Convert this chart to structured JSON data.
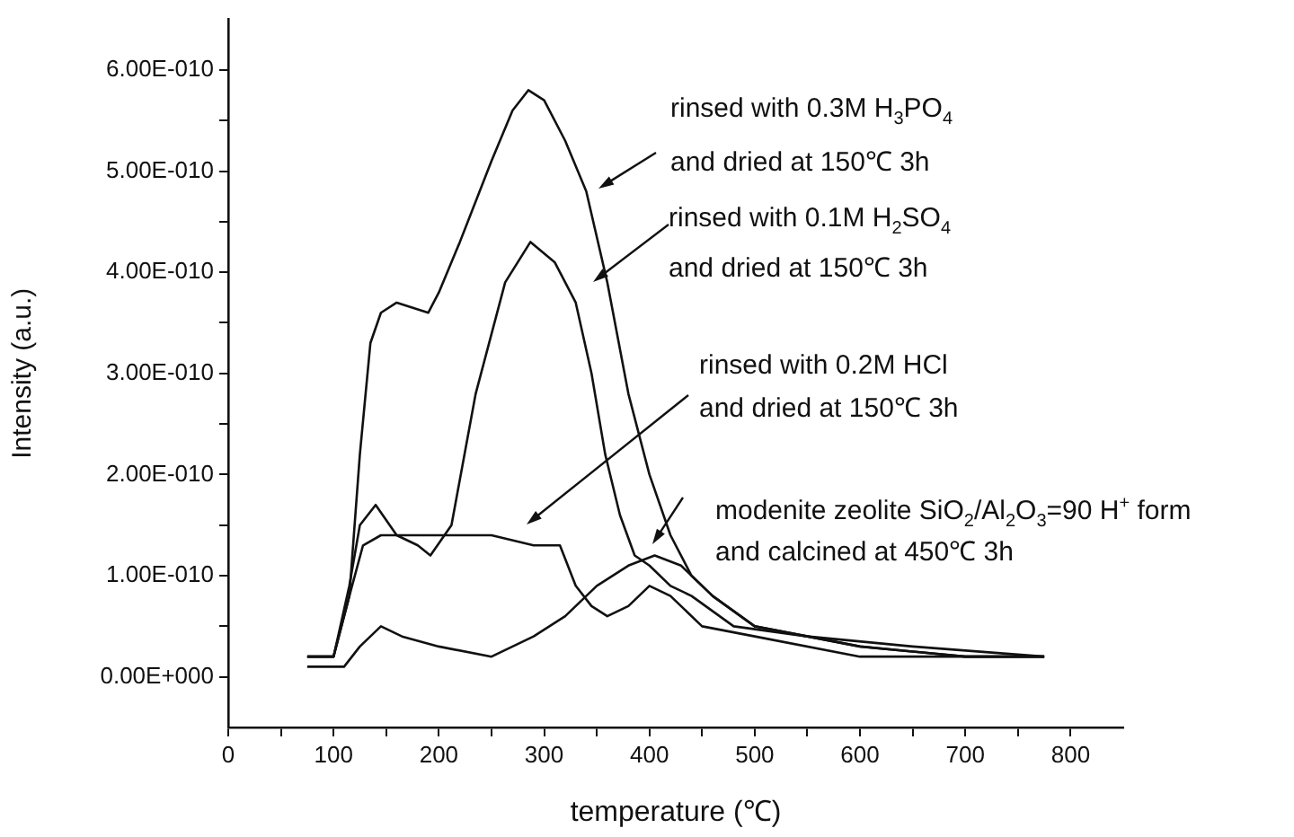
{
  "chart_data": {
    "type": "line",
    "xlabel": "temperature (℃)",
    "ylabel": "Intensity (a.u.)",
    "xlim": [
      0,
      850
    ],
    "xticks": [
      0,
      {
        "value": 50,
        "label": null
      },
      100,
      {
        "value": 150,
        "label": null
      },
      200,
      {
        "value": 250,
        "label": null
      },
      300,
      {
        "value": 350,
        "label": null
      },
      400,
      {
        "value": 450,
        "label": null
      },
      500,
      {
        "value": 550,
        "label": null
      },
      600,
      {
        "value": 650,
        "label": null
      },
      700,
      {
        "value": 750,
        "label": null
      },
      800
    ],
    "ylim": [
      -5e-11,
      6.5e-10
    ],
    "yticks": [
      {
        "value": 0,
        "label": "0.00E+000"
      },
      {
        "value": 5e-11,
        "label": null
      },
      {
        "value": 1e-10,
        "label": "1.00E-010"
      },
      {
        "value": 1.5e-10,
        "label": null
      },
      {
        "value": 2e-10,
        "label": "2.00E-010"
      },
      {
        "value": 2.5e-10,
        "label": null
      },
      {
        "value": 3e-10,
        "label": "3.00E-010"
      },
      {
        "value": 3.5e-10,
        "label": null
      },
      {
        "value": 4e-10,
        "label": "4.00E-010"
      },
      {
        "value": 4.5e-10,
        "label": null
      },
      {
        "value": 5e-10,
        "label": "5.00E-010"
      },
      {
        "value": 5.5e-10,
        "label": null
      },
      {
        "value": 6e-10,
        "label": "6.00E-010"
      }
    ],
    "grid": false,
    "legend": false,
    "series": [
      {
        "color": "#111111",
        "x": [
          75,
          100,
          115,
          125,
          135,
          145,
          160,
          190,
          200,
          220,
          250,
          270,
          285,
          300,
          320,
          340,
          360,
          380,
          400,
          420,
          440,
          460,
          500,
          600,
          700,
          775
        ],
        "values": [
          2e-11,
          2e-11,
          8e-11,
          2.2e-10,
          3.3e-10,
          3.6e-10,
          3.7e-10,
          3.6e-10,
          3.8e-10,
          4.3e-10,
          5.1e-10,
          5.6e-10,
          5.8e-10,
          5.7e-10,
          5.3e-10,
          4.8e-10,
          3.9e-10,
          2.8e-10,
          2e-10,
          1.4e-10,
          1e-10,
          8e-11,
          5e-11,
          3e-11,
          2e-11,
          2e-11
        ]
      },
      {
        "color": "#111111",
        "x": [
          75,
          100,
          115,
          125,
          140,
          160,
          180,
          192,
          212,
          235,
          263,
          287,
          310,
          330,
          345,
          358,
          372,
          386,
          400,
          420,
          440,
          480,
          550,
          650,
          775
        ],
        "values": [
          2e-11,
          2e-11,
          9e-11,
          1.5e-10,
          1.7e-10,
          1.4e-10,
          1.3e-10,
          1.2e-10,
          1.5e-10,
          2.8e-10,
          3.9e-10,
          4.3e-10,
          4.1e-10,
          3.7e-10,
          3e-10,
          2.2e-10,
          1.6e-10,
          1.2e-10,
          1.1e-10,
          9e-11,
          8e-11,
          5e-11,
          4e-11,
          3e-11,
          2e-11
        ]
      },
      {
        "color": "#111111",
        "x": [
          75,
          100,
          115,
          128,
          145,
          170,
          200,
          250,
          290,
          315,
          330,
          345,
          360,
          380,
          400,
          420,
          450,
          500,
          600,
          700,
          775
        ],
        "values": [
          2e-11,
          2e-11,
          8e-11,
          1.3e-10,
          1.4e-10,
          1.4e-10,
          1.4e-10,
          1.4e-10,
          1.3e-10,
          1.3e-10,
          9e-11,
          7e-11,
          6e-11,
          7e-11,
          9e-11,
          8e-11,
          5e-11,
          4e-11,
          2e-11,
          2e-11,
          2e-11
        ]
      },
      {
        "color": "#111111",
        "x": [
          75,
          110,
          125,
          145,
          165,
          200,
          250,
          290,
          320,
          350,
          380,
          405,
          430,
          460,
          500,
          600,
          700,
          775
        ],
        "values": [
          1e-11,
          1e-11,
          3e-11,
          5e-11,
          4e-11,
          3e-11,
          2e-11,
          4e-11,
          6e-11,
          9e-11,
          1.1e-10,
          1.2e-10,
          1.1e-10,
          8e-11,
          5e-11,
          3e-11,
          2e-11,
          2e-11
        ]
      }
    ],
    "annotations": [
      "rinsed with 0.3M H$_{3}$PO$_{4}$",
      "and dried at 150℃ 3h",
      "rinsed with 0.1M H$_{2}$SO$_{4}$",
      "and dried at 150℃ 3h",
      "rinsed with 0.2M HCl",
      "and dried at 150℃ 3h",
      "modenite zeolite SiO$_{2}$/Al$_{2}$O$_{3}$=90 H$^{+}$ form",
      "and calcined at 450℃ 3h"
    ]
  }
}
